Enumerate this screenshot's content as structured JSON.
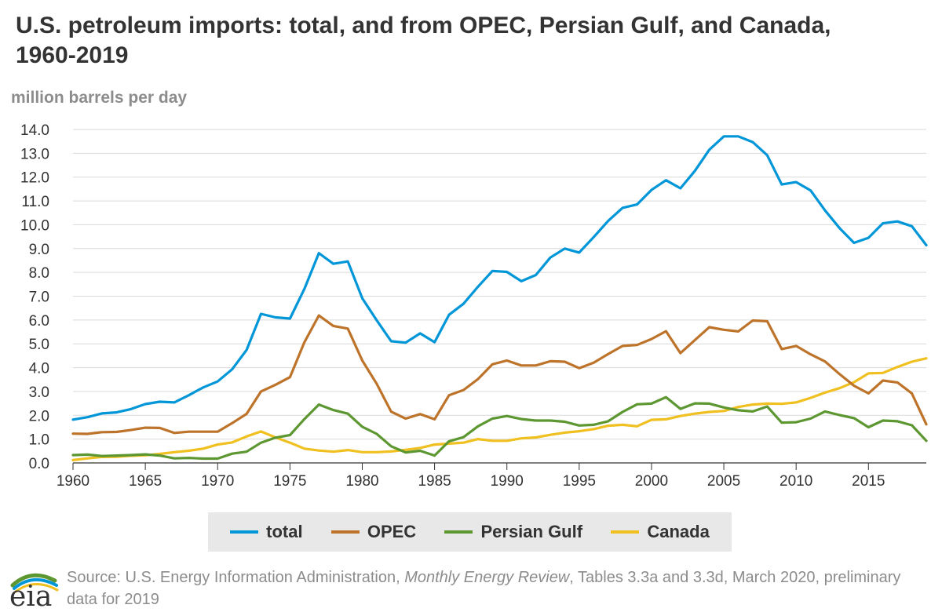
{
  "chart_data": {
    "type": "line",
    "title": "U.S. petroleum imports: total, and from OPEC, Persian Gulf, and Canada, 1960-2019",
    "ylabel": "million barrels per day",
    "xlabel": "",
    "ylim": [
      0,
      14
    ],
    "xlim": [
      1960,
      2019
    ],
    "yticks": [
      "0.0",
      "1.0",
      "2.0",
      "3.0",
      "4.0",
      "5.0",
      "6.0",
      "7.0",
      "8.0",
      "9.0",
      "10.0",
      "11.0",
      "12.0",
      "13.0",
      "14.0"
    ],
    "xticks": [
      "1960",
      "1965",
      "1970",
      "1975",
      "1980",
      "1985",
      "1990",
      "1995",
      "2000",
      "2005",
      "2010",
      "2015"
    ],
    "grid": "horizontal",
    "legend_position": "bottom",
    "x": [
      1960,
      1961,
      1962,
      1963,
      1964,
      1965,
      1966,
      1967,
      1968,
      1969,
      1970,
      1971,
      1972,
      1973,
      1974,
      1975,
      1976,
      1977,
      1978,
      1979,
      1980,
      1981,
      1982,
      1983,
      1984,
      1985,
      1986,
      1987,
      1988,
      1989,
      1990,
      1991,
      1992,
      1993,
      1994,
      1995,
      1996,
      1997,
      1998,
      1999,
      2000,
      2001,
      2002,
      2003,
      2004,
      2005,
      2006,
      2007,
      2008,
      2009,
      2010,
      2011,
      2012,
      2013,
      2014,
      2015,
      2016,
      2017,
      2018,
      2019
    ],
    "series": [
      {
        "name": "total",
        "color": "#0096d7",
        "values": [
          1.82,
          1.92,
          2.08,
          2.12,
          2.26,
          2.47,
          2.57,
          2.54,
          2.84,
          3.17,
          3.42,
          3.93,
          4.74,
          6.26,
          6.11,
          6.06,
          7.31,
          8.81,
          8.36,
          8.46,
          6.91,
          5.99,
          5.11,
          5.05,
          5.44,
          5.07,
          6.22,
          6.68,
          7.4,
          8.06,
          8.02,
          7.63,
          7.89,
          8.62,
          9.0,
          8.83,
          9.48,
          10.16,
          10.71,
          10.85,
          11.46,
          11.87,
          11.53,
          12.26,
          13.15,
          13.71,
          13.71,
          13.47,
          12.92,
          11.69,
          11.79,
          11.44,
          10.6,
          9.86,
          9.24,
          9.45,
          10.06,
          10.14,
          9.94,
          9.14
        ]
      },
      {
        "name": "OPEC",
        "color": "#bd732a",
        "values": [
          1.23,
          1.22,
          1.29,
          1.3,
          1.38,
          1.48,
          1.47,
          1.26,
          1.31,
          1.31,
          1.31,
          1.67,
          2.06,
          3.0,
          3.28,
          3.6,
          5.07,
          6.19,
          5.75,
          5.64,
          4.3,
          3.32,
          2.15,
          1.86,
          2.05,
          1.83,
          2.84,
          3.06,
          3.52,
          4.14,
          4.3,
          4.09,
          4.09,
          4.27,
          4.25,
          3.98,
          4.21,
          4.57,
          4.91,
          4.95,
          5.2,
          5.53,
          4.61,
          5.16,
          5.7,
          5.59,
          5.52,
          5.98,
          5.95,
          4.78,
          4.91,
          4.56,
          4.26,
          3.73,
          3.24,
          2.92,
          3.46,
          3.38,
          2.92,
          1.62
        ]
      },
      {
        "name": "Persian Gulf",
        "color": "#5d9732",
        "values": [
          0.33,
          0.35,
          0.29,
          0.31,
          0.33,
          0.36,
          0.31,
          0.19,
          0.21,
          0.18,
          0.18,
          0.39,
          0.47,
          0.85,
          1.06,
          1.17,
          1.84,
          2.45,
          2.22,
          2.07,
          1.52,
          1.22,
          0.7,
          0.44,
          0.51,
          0.31,
          0.91,
          1.08,
          1.54,
          1.86,
          1.97,
          1.84,
          1.78,
          1.78,
          1.73,
          1.57,
          1.6,
          1.75,
          2.14,
          2.46,
          2.49,
          2.76,
          2.27,
          2.5,
          2.49,
          2.33,
          2.21,
          2.16,
          2.37,
          1.69,
          1.71,
          1.86,
          2.16,
          2.01,
          1.88,
          1.5,
          1.78,
          1.75,
          1.58,
          0.93
        ]
      },
      {
        "name": "Canada",
        "color": "#f0c020",
        "values": [
          0.12,
          0.19,
          0.25,
          0.26,
          0.3,
          0.32,
          0.38,
          0.45,
          0.51,
          0.6,
          0.77,
          0.86,
          1.11,
          1.32,
          1.07,
          0.85,
          0.6,
          0.52,
          0.47,
          0.54,
          0.45,
          0.45,
          0.48,
          0.55,
          0.63,
          0.77,
          0.81,
          0.85,
          1.0,
          0.93,
          0.93,
          1.03,
          1.07,
          1.18,
          1.27,
          1.33,
          1.42,
          1.56,
          1.6,
          1.54,
          1.81,
          1.83,
          1.97,
          2.07,
          2.14,
          2.18,
          2.35,
          2.45,
          2.49,
          2.48,
          2.54,
          2.73,
          2.95,
          3.14,
          3.39,
          3.76,
          3.78,
          4.03,
          4.25,
          4.39
        ]
      }
    ]
  },
  "source": {
    "prefix": "Source: U.S. Energy Information Administration, ",
    "publication": "Monthly Energy Review",
    "suffix": ", Tables 3.3a and 3.3d, March 2020, preliminary data for 2019"
  },
  "logo": {
    "text": "eia",
    "colors": [
      "#5d9732",
      "#0096d7",
      "#f0c020"
    ]
  }
}
